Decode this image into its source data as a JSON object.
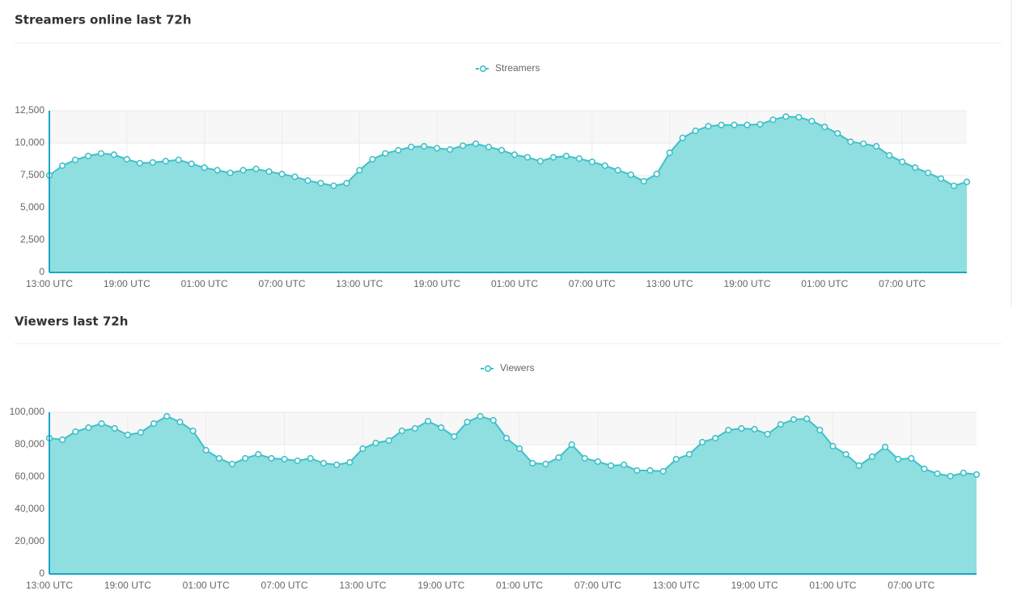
{
  "chart_data": [
    {
      "type": "area",
      "title": "Streamers online last 72h",
      "categories": [
        "13:00 UTC",
        null,
        null,
        null,
        null,
        null,
        "19:00 UTC",
        null,
        null,
        null,
        null,
        null,
        "01:00 UTC",
        null,
        null,
        null,
        null,
        null,
        "07:00 UTC",
        null,
        null,
        null,
        null,
        null,
        "13:00 UTC",
        null,
        null,
        null,
        null,
        null,
        "19:00 UTC",
        null,
        null,
        null,
        null,
        null,
        "01:00 UTC",
        null,
        null,
        null,
        null,
        null,
        "07:00 UTC",
        null,
        null,
        null,
        null,
        null,
        "13:00 UTC",
        null,
        null,
        null,
        null,
        null,
        "19:00 UTC",
        null,
        null,
        null,
        null,
        null,
        "01:00 UTC",
        null,
        null,
        null,
        null,
        null,
        "07:00 UTC",
        null,
        null,
        null,
        null,
        null
      ],
      "series": [
        {
          "name": "Streamers",
          "color": "#3ec1c9",
          "fill": "#8fdfe0",
          "values": [
            7500,
            8250,
            8700,
            9000,
            9200,
            9100,
            8750,
            8450,
            8500,
            8600,
            8700,
            8400,
            8100,
            7900,
            7700,
            7900,
            8000,
            7800,
            7600,
            7400,
            7100,
            6900,
            6700,
            6900,
            7900,
            8750,
            9200,
            9450,
            9700,
            9750,
            9600,
            9500,
            9800,
            9950,
            9700,
            9450,
            9100,
            8900,
            8600,
            8900,
            9000,
            8800,
            8550,
            8250,
            7900,
            7550,
            7050,
            7600,
            9250,
            10400,
            10950,
            11300,
            11400,
            11400,
            11400,
            11450,
            11800,
            12050,
            12000,
            11700,
            11250,
            10750,
            10100,
            9950,
            9750,
            9050,
            8550,
            8100,
            7700,
            7250,
            6700,
            7000
          ]
        }
      ],
      "ylim": [
        0,
        12500
      ],
      "yticks": [
        0,
        {
          "value": 2500,
          "label": "2,500"
        },
        {
          "value": 5000,
          "label": "5,000"
        },
        {
          "value": 7500,
          "label": "7,500"
        },
        {
          "value": 10000,
          "label": "10,000"
        },
        {
          "value": 12500,
          "label": "12,500"
        }
      ],
      "grid": true,
      "legend": "top"
    },
    {
      "type": "area",
      "title": "Viewers last 72h",
      "categories": [
        "13:00 UTC",
        null,
        null,
        null,
        null,
        null,
        "19:00 UTC",
        null,
        null,
        null,
        null,
        null,
        "01:00 UTC",
        null,
        null,
        null,
        null,
        null,
        "07:00 UTC",
        null,
        null,
        null,
        null,
        null,
        "13:00 UTC",
        null,
        null,
        null,
        null,
        null,
        "19:00 UTC",
        null,
        null,
        null,
        null,
        null,
        "01:00 UTC",
        null,
        null,
        null,
        null,
        null,
        "07:00 UTC",
        null,
        null,
        null,
        null,
        null,
        "13:00 UTC",
        null,
        null,
        null,
        null,
        null,
        "19:00 UTC",
        null,
        null,
        null,
        null,
        null,
        "01:00 UTC",
        null,
        null,
        null,
        null,
        null,
        "07:00 UTC",
        null,
        null,
        null,
        null,
        null
      ],
      "series": [
        {
          "name": "Viewers",
          "color": "#3ec1c9",
          "fill": "#8fdfe0",
          "values": [
            84000,
            83000,
            88000,
            90500,
            93000,
            90000,
            86000,
            87500,
            93000,
            97500,
            94000,
            88500,
            76500,
            71500,
            68000,
            71500,
            74000,
            71500,
            71000,
            70000,
            71500,
            68500,
            67500,
            69000,
            77500,
            81000,
            82500,
            88500,
            90000,
            94500,
            90500,
            85000,
            94000,
            97500,
            95000,
            84000,
            77500,
            68500,
            68000,
            72000,
            80000,
            71500,
            69500,
            67000,
            67500,
            64000,
            64000,
            63500,
            71000,
            74000,
            81500,
            84000,
            89000,
            90000,
            89500,
            86500,
            92500,
            95500,
            96000,
            89000,
            79000,
            74000,
            67000,
            72500,
            78500,
            71000,
            71500,
            65000,
            62000,
            60500,
            62500,
            61500
          ]
        }
      ],
      "ylim": [
        0,
        100000
      ],
      "yticks": [
        0,
        {
          "value": 20000,
          "label": "20,000"
        },
        {
          "value": 40000,
          "label": "40,000"
        },
        {
          "value": 60000,
          "label": "60,000"
        },
        {
          "value": 80000,
          "label": "80,000"
        },
        {
          "value": 100000,
          "label": "100,000"
        }
      ],
      "grid": true,
      "legend": "top"
    }
  ]
}
